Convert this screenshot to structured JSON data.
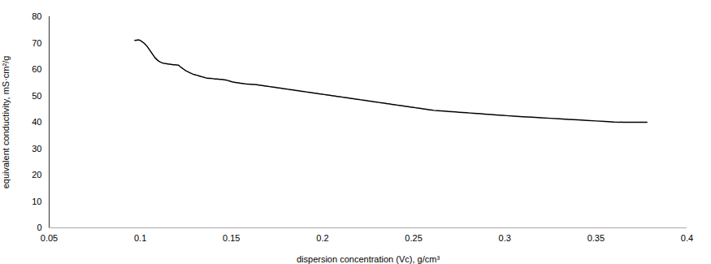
{
  "chart_data": {
    "type": "line",
    "xlabel": "dispersion concentration (Vc), g/cm³",
    "ylabel": "equivalent conductivity, mS·cm²/g",
    "x": [
      0.097,
      0.098,
      0.099,
      0.1,
      0.101,
      0.102,
      0.103,
      0.104,
      0.105,
      0.106,
      0.107,
      0.108,
      0.109,
      0.11,
      0.111,
      0.112,
      0.113,
      0.114,
      0.115,
      0.116,
      0.117,
      0.118,
      0.119,
      0.12,
      0.121,
      0.122,
      0.123,
      0.124,
      0.125,
      0.126,
      0.127,
      0.128,
      0.129,
      0.13,
      0.131,
      0.132,
      0.133,
      0.134,
      0.135,
      0.136,
      0.137,
      0.138,
      0.139,
      0.14,
      0.141,
      0.142,
      0.143,
      0.144,
      0.145,
      0.146,
      0.147,
      0.148,
      0.149,
      0.15,
      0.151,
      0.152,
      0.153,
      0.154,
      0.155,
      0.156,
      0.157,
      0.158,
      0.159,
      0.16,
      0.161,
      0.162,
      0.163,
      0.164,
      0.165,
      0.166,
      0.167,
      0.168,
      0.169,
      0.17,
      0.171,
      0.172,
      0.173,
      0.174,
      0.175,
      0.176,
      0.177,
      0.178,
      0.179,
      0.18,
      0.181,
      0.182,
      0.183,
      0.184,
      0.185,
      0.186,
      0.187,
      0.188,
      0.189,
      0.19,
      0.191,
      0.192,
      0.193,
      0.194,
      0.195,
      0.196,
      0.197,
      0.198,
      0.199,
      0.2,
      0.201,
      0.202,
      0.203,
      0.204,
      0.205,
      0.206,
      0.207,
      0.208,
      0.209,
      0.21,
      0.211,
      0.212,
      0.213,
      0.214,
      0.215,
      0.216,
      0.217,
      0.218,
      0.219,
      0.22,
      0.221,
      0.222,
      0.223,
      0.224,
      0.225,
      0.226,
      0.227,
      0.228,
      0.229,
      0.23,
      0.231,
      0.232,
      0.233,
      0.234,
      0.235,
      0.236,
      0.237,
      0.238,
      0.239,
      0.24,
      0.241,
      0.242,
      0.243,
      0.244,
      0.245,
      0.246,
      0.247,
      0.248,
      0.249,
      0.25,
      0.251,
      0.252,
      0.253,
      0.254,
      0.255,
      0.256,
      0.257,
      0.258,
      0.259,
      0.26,
      0.261,
      0.263,
      0.265,
      0.267,
      0.269,
      0.271,
      0.273,
      0.275,
      0.277,
      0.279,
      0.281,
      0.283,
      0.285,
      0.287,
      0.289,
      0.291,
      0.293,
      0.295,
      0.297,
      0.299,
      0.301,
      0.305,
      0.31,
      0.315,
      0.32,
      0.325,
      0.33,
      0.335,
      0.34,
      0.345,
      0.35,
      0.355,
      0.36,
      0.365,
      0.37,
      0.375,
      0.378
    ],
    "values": [
      71.0,
      71.1,
      71.2,
      71.0,
      70.5,
      70.0,
      69.3,
      68.5,
      67.5,
      66.5,
      65.5,
      64.5,
      63.8,
      63.2,
      62.8,
      62.5,
      62.3,
      62.2,
      62.1,
      62.0,
      61.9,
      61.8,
      61.8,
      61.7,
      61.6,
      61.0,
      60.5,
      60.0,
      59.5,
      59.2,
      58.8,
      58.5,
      58.2,
      58.0,
      57.8,
      57.6,
      57.4,
      57.2,
      57.0,
      56.8,
      56.7,
      56.6,
      56.6,
      56.5,
      56.4,
      56.4,
      56.3,
      56.2,
      56.2,
      56.1,
      56.0,
      55.8,
      55.6,
      55.4,
      55.2,
      55.1,
      55.0,
      54.9,
      54.8,
      54.7,
      54.6,
      54.5,
      54.5,
      54.4,
      54.4,
      54.3,
      54.3,
      54.2,
      54.1,
      54.0,
      53.9,
      53.8,
      53.7,
      53.6,
      53.5,
      53.4,
      53.3,
      53.2,
      53.1,
      53.0,
      52.9,
      52.8,
      52.7,
      52.6,
      52.5,
      52.4,
      52.3,
      52.2,
      52.1,
      52.0,
      51.9,
      51.8,
      51.7,
      51.6,
      51.5,
      51.4,
      51.3,
      51.2,
      51.1,
      51.0,
      50.9,
      50.8,
      50.7,
      50.6,
      50.5,
      50.4,
      50.3,
      50.2,
      50.1,
      50.0,
      49.9,
      49.8,
      49.7,
      49.6,
      49.5,
      49.4,
      49.3,
      49.2,
      49.1,
      49.0,
      48.9,
      48.8,
      48.7,
      48.6,
      48.5,
      48.4,
      48.3,
      48.2,
      48.1,
      48.0,
      47.9,
      47.8,
      47.7,
      47.6,
      47.5,
      47.4,
      47.3,
      47.2,
      47.1,
      47.0,
      46.9,
      46.8,
      46.7,
      46.6,
      46.5,
      46.4,
      46.3,
      46.2,
      46.1,
      46.0,
      45.9,
      45.8,
      45.7,
      45.6,
      45.5,
      45.4,
      45.3,
      45.2,
      45.1,
      45.0,
      44.9,
      44.8,
      44.7,
      44.6,
      44.5,
      44.4,
      44.3,
      44.2,
      44.1,
      44.0,
      43.9,
      43.8,
      43.7,
      43.6,
      43.5,
      43.4,
      43.3,
      43.2,
      43.1,
      43.0,
      42.9,
      42.8,
      42.7,
      42.6,
      42.5,
      42.3,
      42.1,
      41.9,
      41.7,
      41.5,
      41.3,
      41.1,
      40.9,
      40.7,
      40.5,
      40.3,
      40.1,
      40.0,
      40.0,
      40.0,
      40.0
    ],
    "color": "#000000",
    "xlim": [
      0.05,
      0.4
    ],
    "ylim": [
      0,
      80
    ],
    "xticks": [
      0.05,
      0.1,
      0.15,
      0.2,
      0.25,
      0.3,
      0.35,
      0.4
    ],
    "yticks": [
      0,
      10,
      20,
      30,
      40,
      50,
      60,
      70,
      80
    ],
    "grid": false
  }
}
